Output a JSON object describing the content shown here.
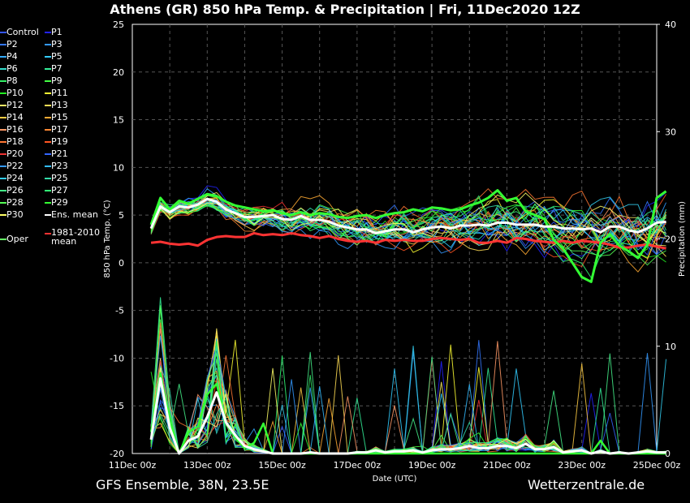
{
  "title": "Athens  (GR)  850 hPa Temp. & Precipitation | Fri, 11Dec2020 12Z",
  "footer": {
    "left": "GFS Ensemble, 38N, 23.5E",
    "right": "Wetterzentrale.de"
  },
  "colors": {
    "background": "#000000",
    "grid": "#555555",
    "ens_mean": "#ffffff",
    "climatology": "#ff3333",
    "oper": "#33ff33"
  },
  "legend": [
    {
      "label": "Control",
      "color": "#3355ff"
    },
    {
      "label": "P1",
      "color": "#2222ff"
    },
    {
      "label": "P2",
      "color": "#3377ff"
    },
    {
      "label": "P3",
      "color": "#3399ff"
    },
    {
      "label": "P4",
      "color": "#33aaff"
    },
    {
      "label": "P5",
      "color": "#33ccff"
    },
    {
      "label": "P6",
      "color": "#33ddcc"
    },
    {
      "label": "P7",
      "color": "#33ee99"
    },
    {
      "label": "P8",
      "color": "#33ee66"
    },
    {
      "label": "P9",
      "color": "#44ff44"
    },
    {
      "label": "P10",
      "color": "#22ee22"
    },
    {
      "label": "P11",
      "color": "#ffff33"
    },
    {
      "label": "P12",
      "color": "#ffee66"
    },
    {
      "label": "P13",
      "color": "#ffdd55"
    },
    {
      "label": "P14",
      "color": "#ffcc44"
    },
    {
      "label": "P15",
      "color": "#ffaa33"
    },
    {
      "label": "P16",
      "color": "#ff9966"
    },
    {
      "label": "P17",
      "color": "#ff8833"
    },
    {
      "label": "P18",
      "color": "#ff7733"
    },
    {
      "label": "P19",
      "color": "#ff5522"
    },
    {
      "label": "P20",
      "color": "#ee3333"
    },
    {
      "label": "P21",
      "color": "#3366ff"
    },
    {
      "label": "P22",
      "color": "#3399ff"
    },
    {
      "label": "P23",
      "color": "#33bbff"
    },
    {
      "label": "P24",
      "color": "#33ccee"
    },
    {
      "label": "P25",
      "color": "#33ddaa"
    },
    {
      "label": "P26",
      "color": "#44ee88"
    },
    {
      "label": "P27",
      "color": "#33ff77"
    },
    {
      "label": "P28",
      "color": "#55ff55"
    },
    {
      "label": "P29",
      "color": "#33ff33"
    },
    {
      "label": "P30",
      "color": "#ffff66"
    },
    {
      "label": "Ens. mean",
      "color": "#ffffff"
    },
    {
      "label": "Oper",
      "color": "#66ff66"
    },
    {
      "label": "1981-2010 mean",
      "color": "#ff3333"
    }
  ],
  "chart_data": {
    "type": "line",
    "xlabel": "Date (UTC)",
    "ylabel": "850 hPa Temp. (°C)",
    "y2label": "Precipitation (mm)",
    "ylim": [
      -20,
      25
    ],
    "y2lim": [
      0,
      40
    ],
    "xlim": [
      "11Dec00z",
      "25Dec00z"
    ],
    "x_ticks": [
      "11Dec 00z",
      "13Dec 00z",
      "15Dec 00z",
      "17Dec 00z",
      "19Dec 00z",
      "21Dec 00z",
      "23Dec 00z",
      "25Dec 00z"
    ],
    "y_ticks": [
      25,
      20,
      15,
      10,
      5,
      0,
      -5,
      -10,
      -15,
      -20
    ],
    "y2_ticks": [
      40,
      30,
      20,
      10,
      0
    ],
    "grid": true,
    "x_step_hours": 6,
    "x_start_hour_from_axis_start": 12,
    "series": [
      {
        "name": "Ens. mean",
        "axis": "temp",
        "values": [
          3.6,
          5.9,
          5.3,
          5.9,
          5.8,
          6.1,
          6.7,
          6.4,
          5.6,
          5.2,
          4.8,
          4.8,
          4.9,
          5.0,
          4.6,
          4.5,
          4.9,
          4.5,
          4.5,
          4.3,
          3.9,
          3.7,
          3.5,
          3.5,
          3.1,
          3.3,
          3.5,
          3.5,
          3.2,
          3.5,
          3.7,
          3.8,
          3.6,
          3.9,
          3.9,
          4.0,
          3.9,
          4.2,
          4.2,
          4.0,
          4.0,
          4.0,
          3.8,
          3.8,
          3.6,
          3.6,
          3.5,
          3.6,
          3.2,
          3.8,
          3.8,
          3.4,
          3.2,
          3.6,
          4.2,
          4.3
        ]
      },
      {
        "name": "Oper",
        "axis": "temp",
        "values": [
          4.0,
          6.8,
          5.6,
          6.5,
          6.2,
          6.7,
          7.2,
          7.0,
          6.4,
          6.0,
          5.8,
          5.6,
          5.4,
          5.5,
          5.2,
          5.0,
          5.3,
          5.0,
          5.2,
          5.1,
          4.8,
          4.7,
          4.9,
          5.0,
          4.7,
          5.0,
          5.2,
          5.3,
          5.6,
          5.4,
          5.8,
          5.7,
          5.5,
          5.6,
          6.0,
          6.3,
          6.8,
          7.6,
          6.5,
          6.8,
          5.4,
          5.0,
          4.6,
          2.4,
          1.5,
          0.0,
          -1.5,
          -2.0,
          2.1,
          3.0,
          1.8,
          1.2,
          0.5,
          1.9,
          6.8,
          7.5
        ]
      },
      {
        "name": "1981-2010 mean",
        "axis": "temp",
        "values": [
          2.1,
          2.2,
          2.0,
          1.9,
          2.0,
          1.8,
          2.4,
          2.7,
          2.8,
          2.7,
          2.7,
          3.1,
          2.9,
          3.0,
          2.9,
          3.1,
          2.9,
          2.8,
          2.6,
          2.8,
          2.5,
          2.3,
          2.2,
          2.3,
          2.1,
          2.4,
          2.3,
          2.4,
          2.3,
          2.3,
          2.5,
          2.6,
          2.5,
          2.4,
          2.5,
          2.1,
          2.1,
          2.3,
          2.1,
          2.6,
          2.5,
          2.3,
          2.2,
          2.1,
          2.3,
          2.1,
          2.3,
          2.2,
          2.1,
          1.9,
          1.6,
          1.6,
          1.8,
          1.9,
          1.7,
          1.5
        ]
      },
      {
        "name": "Ens. mean precipitation",
        "axis": "precip",
        "values": [
          1.3,
          7.0,
          2.4,
          0.0,
          1.2,
          1.6,
          3.4,
          5.7,
          2.9,
          1.7,
          0.7,
          0.4,
          0.2,
          0.0,
          0.0,
          0.0,
          0.0,
          0.1,
          0.0,
          0.0,
          0.0,
          0.0,
          0.1,
          0.1,
          0.3,
          0.1,
          0.2,
          0.2,
          0.3,
          0.1,
          0.3,
          0.4,
          0.4,
          0.5,
          0.7,
          0.5,
          0.5,
          0.7,
          0.7,
          0.5,
          0.9,
          0.4,
          0.4,
          0.6,
          0.1,
          0.2,
          0.3,
          0.0,
          0.2,
          0.0,
          0.1,
          0.0,
          0.1,
          0.2,
          0.1,
          0.1
        ]
      },
      {
        "name": "Oper precipitation",
        "axis": "precip",
        "values": [
          2.0,
          7.5,
          3.0,
          0.0,
          2.0,
          2.5,
          5.5,
          6.5,
          3.0,
          1.5,
          0.5,
          1.0,
          2.8,
          0.0,
          0.0,
          0.0,
          0.0,
          0.0,
          0.0,
          0.0,
          0.0,
          0.0,
          0.0,
          0.0,
          0.0,
          0.0,
          0.0,
          0.0,
          0.0,
          0.0,
          0.0,
          0.0,
          0.0,
          0.0,
          0.0,
          0.0,
          0.0,
          0.0,
          0.0,
          0.0,
          0.0,
          0.0,
          0.0,
          0.0,
          0.0,
          0.0,
          0.0,
          0.0,
          1.2,
          0.0,
          0.0,
          0.0,
          0.0,
          0.0,
          0.0,
          0.0
        ]
      }
    ],
    "members_note": "Thin coloured lines: individual ensemble members Control, P1–P30 (temperature and precipitation)"
  }
}
